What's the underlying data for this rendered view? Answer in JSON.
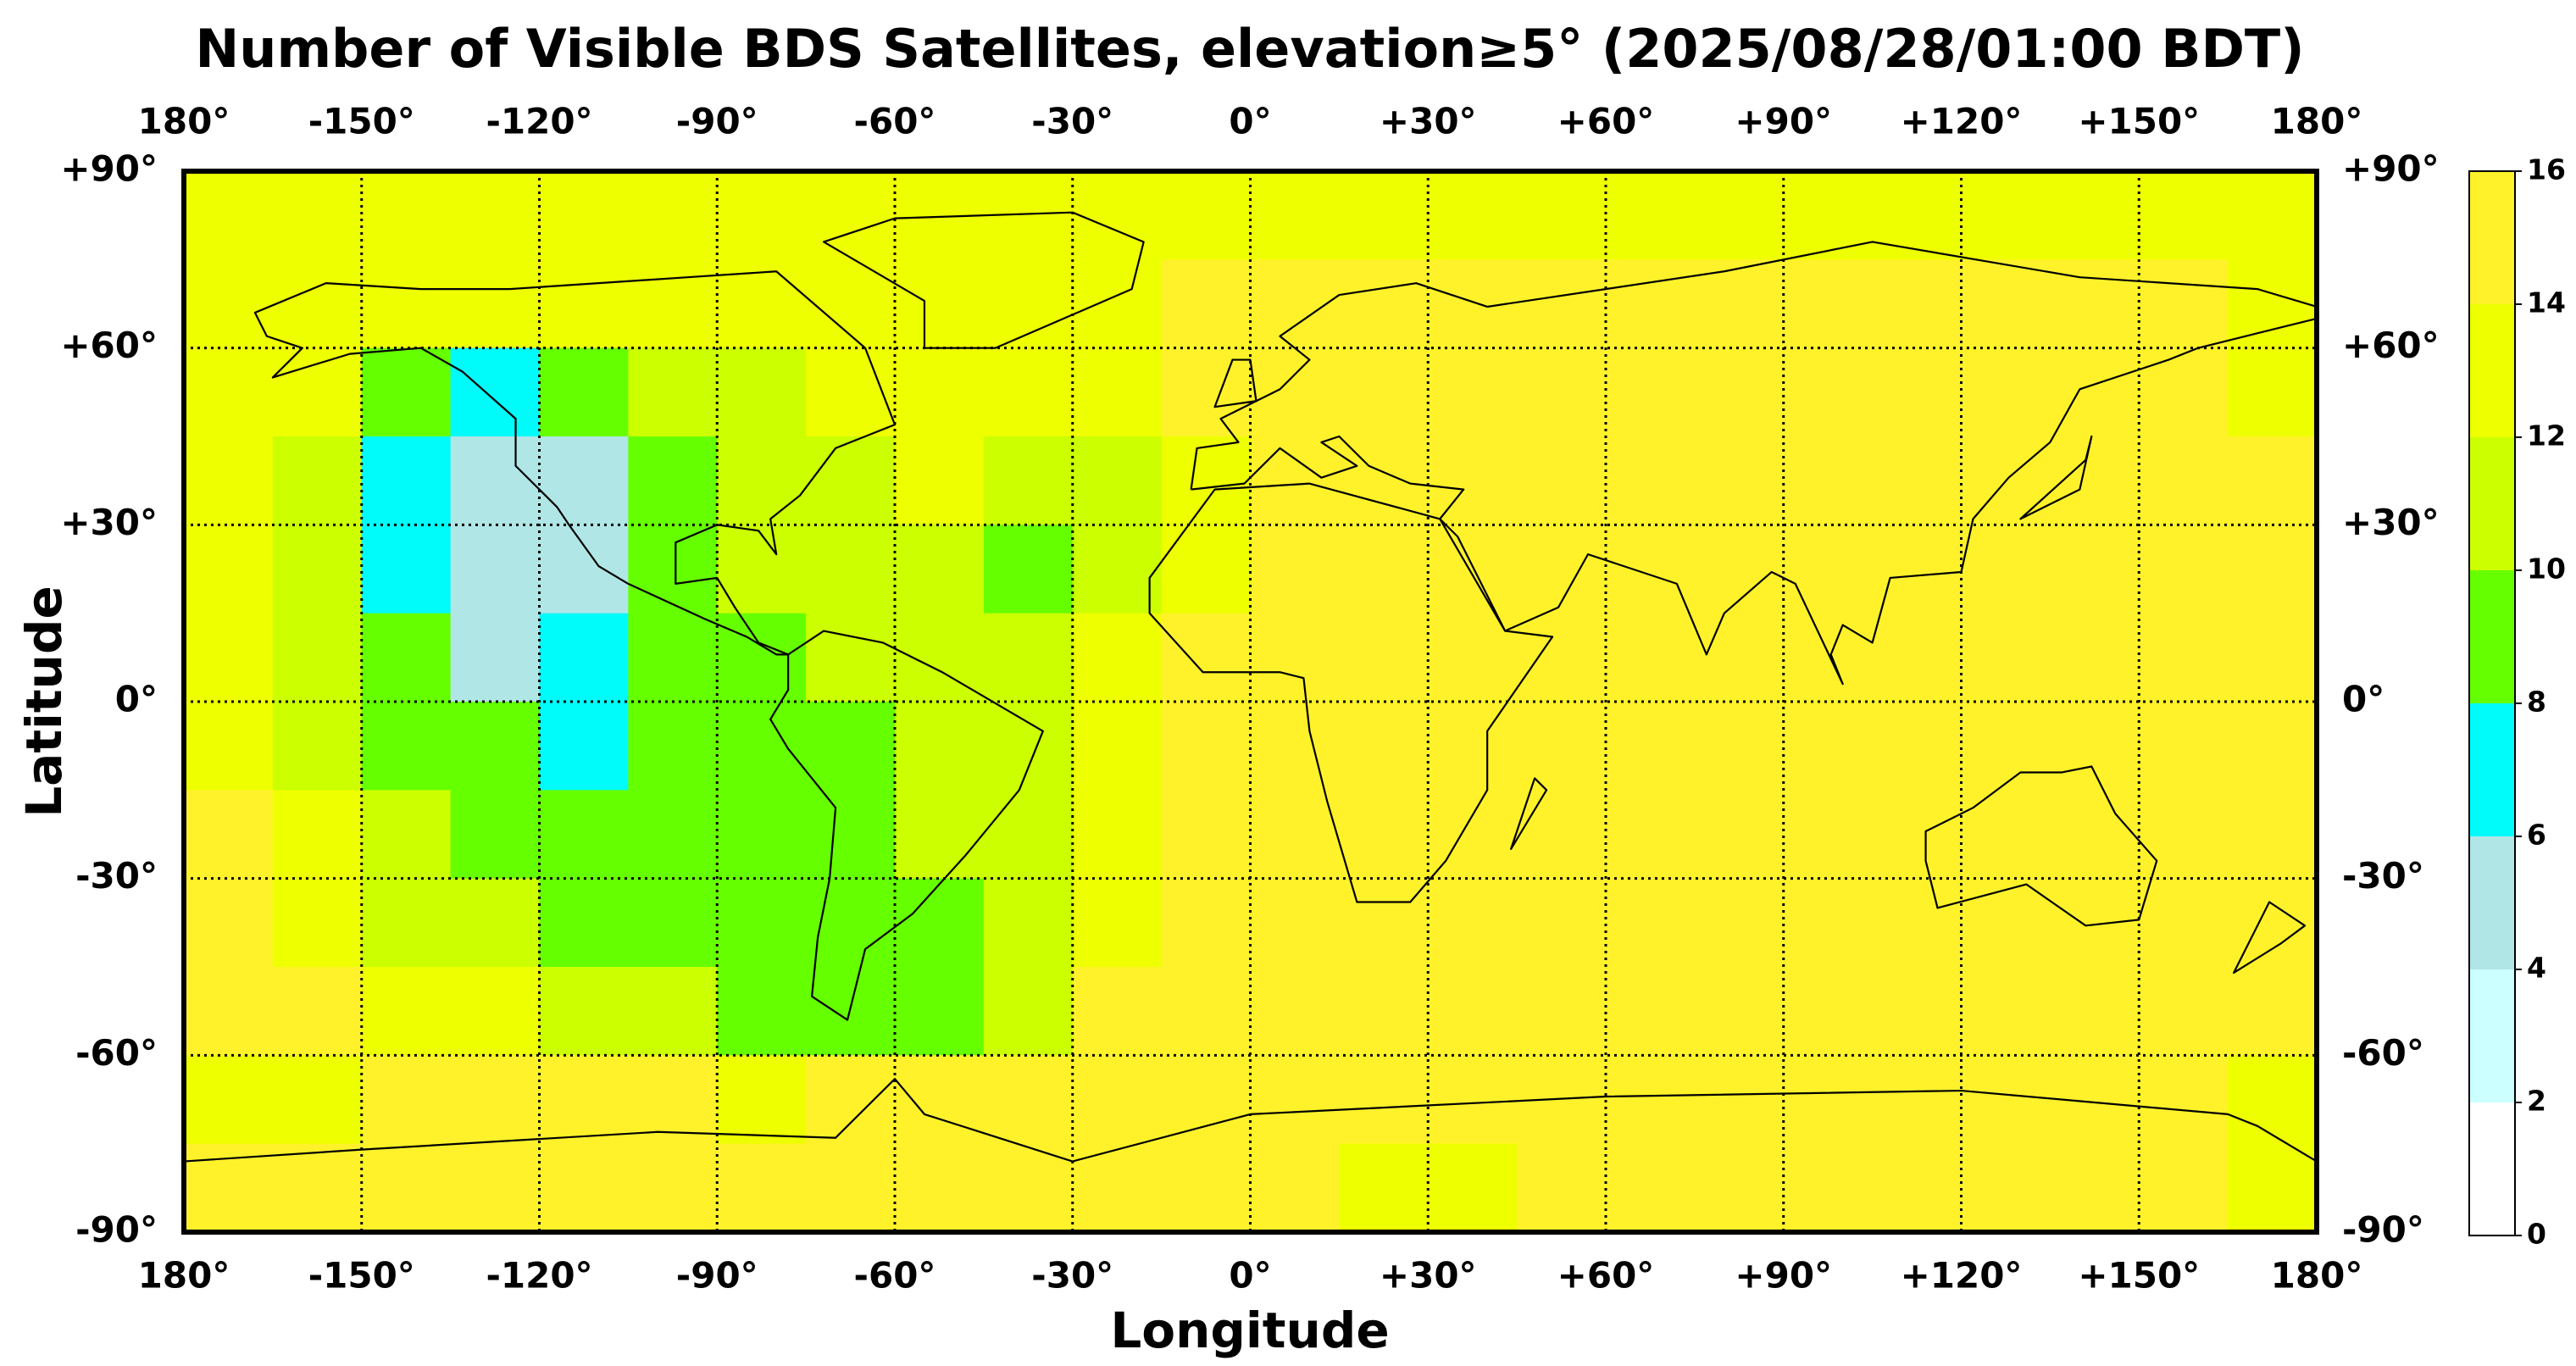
{
  "chart_data": {
    "type": "heatmap",
    "title": "Number of Visible BDS Satellites, elevation≥5° (2025/08/28/01:00 BDT)",
    "xlabel": "Longitude",
    "ylabel": "Latitude",
    "xlim": [
      -180,
      180
    ],
    "ylim": [
      -90,
      90
    ],
    "xticks": [
      {
        "value": -180,
        "label": "180°"
      },
      {
        "value": -150,
        "label": "-150°"
      },
      {
        "value": -120,
        "label": "-120°"
      },
      {
        "value": -90,
        "label": "-90°"
      },
      {
        "value": -60,
        "label": "-60°"
      },
      {
        "value": -30,
        "label": "-30°"
      },
      {
        "value": 0,
        "label": "0°"
      },
      {
        "value": 30,
        "label": "+30°"
      },
      {
        "value": 60,
        "label": "+60°"
      },
      {
        "value": 90,
        "label": "+90°"
      },
      {
        "value": 120,
        "label": "+120°"
      },
      {
        "value": 150,
        "label": "+150°"
      },
      {
        "value": 180,
        "label": "180°"
      }
    ],
    "yticks": [
      {
        "value": 90,
        "label": "+90°"
      },
      {
        "value": 60,
        "label": "+60°"
      },
      {
        "value": 30,
        "label": "+30°"
      },
      {
        "value": 0,
        "label": "0°"
      },
      {
        "value": -30,
        "label": "-30°"
      },
      {
        "value": -60,
        "label": "-60°"
      },
      {
        "value": -90,
        "label": "-90°"
      }
    ],
    "grid": true,
    "xbins": [
      -180,
      -165,
      -150,
      -135,
      -120,
      -105,
      -90,
      -75,
      -60,
      -45,
      -30,
      -15,
      0,
      15,
      30,
      45,
      60,
      75,
      90,
      105,
      120,
      135,
      150,
      165,
      180
    ],
    "ybins": [
      90,
      75,
      60,
      45,
      30,
      15,
      0,
      -15,
      -30,
      -45,
      -60,
      -75,
      -90
    ],
    "values": [
      [
        13,
        13,
        13,
        13,
        13,
        13,
        13,
        13,
        13,
        13,
        13,
        13,
        13,
        13,
        13,
        13,
        13,
        13,
        13,
        13,
        13,
        13,
        13,
        13
      ],
      [
        13,
        13,
        13,
        13,
        13,
        13,
        13,
        13,
        13,
        13,
        13,
        15,
        15,
        15,
        15,
        15,
        15,
        15,
        15,
        15,
        15,
        15,
        15,
        13
      ],
      [
        13,
        13,
        9,
        7,
        9,
        11,
        11,
        13,
        13,
        13,
        13,
        15,
        15,
        15,
        15,
        15,
        15,
        15,
        15,
        15,
        15,
        15,
        15,
        13
      ],
      [
        13,
        11,
        7,
        5,
        5,
        9,
        11,
        11,
        13,
        11,
        11,
        13,
        15,
        15,
        15,
        15,
        15,
        15,
        15,
        15,
        15,
        15,
        15,
        15
      ],
      [
        13,
        11,
        7,
        5,
        5,
        9,
        11,
        11,
        11,
        9,
        11,
        13,
        15,
        15,
        15,
        15,
        15,
        15,
        15,
        15,
        15,
        15,
        15,
        15
      ],
      [
        13,
        11,
        9,
        5,
        7,
        9,
        9,
        11,
        11,
        11,
        13,
        15,
        15,
        15,
        15,
        15,
        15,
        15,
        15,
        15,
        15,
        15,
        15,
        15
      ],
      [
        13,
        11,
        9,
        9,
        7,
        9,
        9,
        9,
        11,
        11,
        13,
        15,
        15,
        15,
        15,
        15,
        15,
        15,
        15,
        15,
        15,
        15,
        15,
        15
      ],
      [
        15,
        13,
        11,
        9,
        9,
        9,
        9,
        9,
        11,
        11,
        13,
        15,
        15,
        15,
        15,
        15,
        15,
        15,
        15,
        15,
        15,
        15,
        15,
        15
      ],
      [
        15,
        13,
        11,
        11,
        9,
        9,
        9,
        9,
        9,
        11,
        13,
        15,
        15,
        15,
        15,
        15,
        15,
        15,
        15,
        15,
        15,
        15,
        15,
        15
      ],
      [
        15,
        15,
        13,
        13,
        11,
        11,
        9,
        9,
        9,
        11,
        15,
        15,
        15,
        15,
        15,
        15,
        15,
        15,
        15,
        15,
        15,
        15,
        15,
        15
      ],
      [
        13,
        13,
        15,
        15,
        15,
        15,
        13,
        15,
        15,
        15,
        15,
        15,
        15,
        15,
        15,
        15,
        15,
        15,
        15,
        15,
        15,
        15,
        15,
        13
      ],
      [
        15,
        15,
        15,
        15,
        15,
        15,
        15,
        15,
        15,
        15,
        15,
        15,
        15,
        13,
        13,
        15,
        15,
        15,
        15,
        15,
        15,
        15,
        15,
        13
      ]
    ],
    "colorbar": {
      "ticks": [
        0,
        2,
        4,
        6,
        8,
        10,
        12,
        14,
        16
      ],
      "colors": [
        "#ffffff",
        "#ccffff",
        "#b0e6e6",
        "#00fbfb",
        "#66ff00",
        "#ccff00",
        "#eeff00",
        "#fff22a"
      ]
    }
  }
}
